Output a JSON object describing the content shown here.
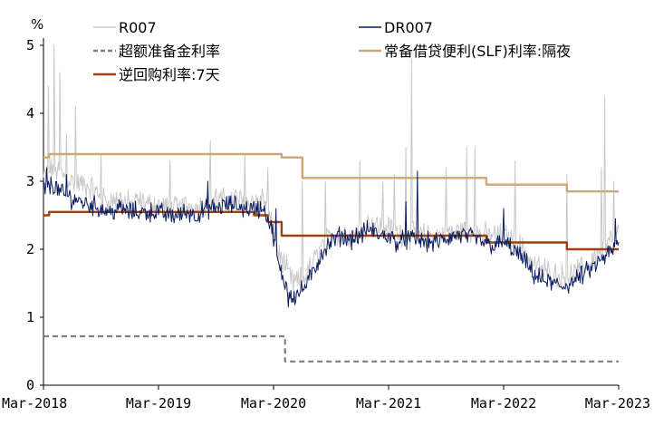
{
  "chart_data": {
    "type": "line",
    "unit_label": "%",
    "ylim": [
      0,
      5
    ],
    "yticks": [
      0,
      1,
      2,
      3,
      4,
      5
    ],
    "x_range": [
      "2018-03",
      "2023-03"
    ],
    "x_ticks": [
      {
        "label": "Mar-2018",
        "t": 2018.0
      },
      {
        "label": "Mar-2019",
        "t": 2019.0
      },
      {
        "label": "Mar-2020",
        "t": 2020.0
      },
      {
        "label": "Mar-2021",
        "t": 2021.0
      },
      {
        "label": "Mar-2022",
        "t": 2022.0
      },
      {
        "label": "Mar-2023",
        "t": 2023.0
      }
    ],
    "series": [
      {
        "name": "R007",
        "color": "#c8c8c8",
        "style": "solid",
        "kind": "noisy",
        "points": [
          [
            2018.0,
            3.05
          ],
          [
            2018.08,
            3.2
          ],
          [
            2018.17,
            3.1
          ],
          [
            2018.25,
            3.0
          ],
          [
            2018.33,
            2.95
          ],
          [
            2018.42,
            2.9
          ],
          [
            2018.5,
            2.75
          ],
          [
            2018.58,
            2.7
          ],
          [
            2018.67,
            2.75
          ],
          [
            2018.75,
            2.65
          ],
          [
            2018.83,
            2.7
          ],
          [
            2018.92,
            2.65
          ],
          [
            2019.0,
            2.65
          ],
          [
            2019.08,
            2.6
          ],
          [
            2019.17,
            2.6
          ],
          [
            2019.25,
            2.65
          ],
          [
            2019.33,
            2.6
          ],
          [
            2019.42,
            2.7
          ],
          [
            2019.5,
            2.75
          ],
          [
            2019.58,
            2.7
          ],
          [
            2019.67,
            2.75
          ],
          [
            2019.75,
            2.7
          ],
          [
            2019.83,
            2.7
          ],
          [
            2019.92,
            2.75
          ],
          [
            2020.0,
            2.2
          ],
          [
            2020.05,
            1.9
          ],
          [
            2020.1,
            1.75
          ],
          [
            2020.17,
            1.5
          ],
          [
            2020.25,
            1.55
          ],
          [
            2020.33,
            1.75
          ],
          [
            2020.42,
            2.05
          ],
          [
            2020.5,
            2.2
          ],
          [
            2020.58,
            2.25
          ],
          [
            2020.67,
            2.2
          ],
          [
            2020.75,
            2.3
          ],
          [
            2020.83,
            2.4
          ],
          [
            2020.92,
            2.35
          ],
          [
            2021.0,
            2.3
          ],
          [
            2021.08,
            2.25
          ],
          [
            2021.17,
            2.2
          ],
          [
            2021.25,
            2.2
          ],
          [
            2021.33,
            2.2
          ],
          [
            2021.42,
            2.2
          ],
          [
            2021.5,
            2.25
          ],
          [
            2021.58,
            2.25
          ],
          [
            2021.67,
            2.3
          ],
          [
            2021.75,
            2.25
          ],
          [
            2021.83,
            2.2
          ],
          [
            2021.92,
            2.2
          ],
          [
            2022.0,
            2.2
          ],
          [
            2022.08,
            2.15
          ],
          [
            2022.17,
            2.0
          ],
          [
            2022.25,
            1.8
          ],
          [
            2022.33,
            1.7
          ],
          [
            2022.42,
            1.65
          ],
          [
            2022.5,
            1.6
          ],
          [
            2022.58,
            1.6
          ],
          [
            2022.67,
            1.7
          ],
          [
            2022.75,
            1.8
          ],
          [
            2022.83,
            1.95
          ],
          [
            2022.92,
            2.1
          ],
          [
            2023.0,
            2.25
          ]
        ],
        "spikes": [
          [
            2018.04,
            4.4
          ],
          [
            2018.09,
            5.0
          ],
          [
            2018.14,
            4.6
          ],
          [
            2018.2,
            3.7
          ],
          [
            2018.28,
            4.1
          ],
          [
            2018.5,
            3.4
          ],
          [
            2019.1,
            3.3
          ],
          [
            2019.45,
            3.6
          ],
          [
            2019.75,
            3.4
          ],
          [
            2019.95,
            3.2
          ],
          [
            2020.25,
            3.0
          ],
          [
            2020.45,
            3.0
          ],
          [
            2020.75,
            3.3
          ],
          [
            2020.95,
            3.0
          ],
          [
            2021.05,
            3.1
          ],
          [
            2021.15,
            3.5
          ],
          [
            2021.2,
            4.8
          ],
          [
            2021.5,
            3.2
          ],
          [
            2021.68,
            3.5
          ],
          [
            2021.75,
            3.5
          ],
          [
            2022.1,
            3.3
          ],
          [
            2022.55,
            3.1
          ],
          [
            2022.85,
            3.2
          ],
          [
            2022.88,
            4.25
          ],
          [
            2022.96,
            3.0
          ]
        ]
      },
      {
        "name": "DR007",
        "color": "#0b1d5c",
        "style": "solid",
        "kind": "noisy",
        "points": [
          [
            2018.0,
            2.9
          ],
          [
            2018.08,
            2.95
          ],
          [
            2018.17,
            2.8
          ],
          [
            2018.25,
            2.75
          ],
          [
            2018.33,
            2.7
          ],
          [
            2018.42,
            2.65
          ],
          [
            2018.5,
            2.6
          ],
          [
            2018.58,
            2.55
          ],
          [
            2018.67,
            2.6
          ],
          [
            2018.75,
            2.55
          ],
          [
            2018.83,
            2.55
          ],
          [
            2018.92,
            2.55
          ],
          [
            2019.0,
            2.55
          ],
          [
            2019.08,
            2.5
          ],
          [
            2019.17,
            2.5
          ],
          [
            2019.25,
            2.55
          ],
          [
            2019.33,
            2.5
          ],
          [
            2019.42,
            2.6
          ],
          [
            2019.5,
            2.6
          ],
          [
            2019.58,
            2.65
          ],
          [
            2019.67,
            2.65
          ],
          [
            2019.75,
            2.6
          ],
          [
            2019.83,
            2.6
          ],
          [
            2019.92,
            2.6
          ],
          [
            2020.0,
            2.2
          ],
          [
            2020.05,
            1.7
          ],
          [
            2020.1,
            1.5
          ],
          [
            2020.17,
            1.3
          ],
          [
            2020.25,
            1.4
          ],
          [
            2020.33,
            1.6
          ],
          [
            2020.42,
            1.95
          ],
          [
            2020.5,
            2.1
          ],
          [
            2020.58,
            2.2
          ],
          [
            2020.67,
            2.15
          ],
          [
            2020.75,
            2.2
          ],
          [
            2020.83,
            2.3
          ],
          [
            2020.92,
            2.2
          ],
          [
            2021.0,
            2.2
          ],
          [
            2021.08,
            2.1
          ],
          [
            2021.17,
            2.15
          ],
          [
            2021.25,
            2.15
          ],
          [
            2021.33,
            2.1
          ],
          [
            2021.42,
            2.1
          ],
          [
            2021.5,
            2.15
          ],
          [
            2021.58,
            2.2
          ],
          [
            2021.67,
            2.2
          ],
          [
            2021.75,
            2.15
          ],
          [
            2021.83,
            2.1
          ],
          [
            2021.92,
            2.05
          ],
          [
            2022.0,
            2.1
          ],
          [
            2022.08,
            2.0
          ],
          [
            2022.17,
            1.85
          ],
          [
            2022.25,
            1.65
          ],
          [
            2022.33,
            1.55
          ],
          [
            2022.42,
            1.5
          ],
          [
            2022.5,
            1.45
          ],
          [
            2022.58,
            1.5
          ],
          [
            2022.67,
            1.6
          ],
          [
            2022.75,
            1.7
          ],
          [
            2022.83,
            1.8
          ],
          [
            2022.92,
            1.95
          ],
          [
            2023.0,
            2.05
          ]
        ],
        "spikes": [
          [
            2018.03,
            3.2
          ],
          [
            2018.2,
            3.1
          ],
          [
            2019.43,
            3.0
          ],
          [
            2020.02,
            2.6
          ],
          [
            2020.13,
            1.15
          ],
          [
            2021.15,
            2.7
          ],
          [
            2021.25,
            3.15
          ],
          [
            2022.0,
            2.6
          ],
          [
            2022.97,
            2.45
          ]
        ]
      },
      {
        "name": "超额准备金利率",
        "color": "#7f7f7f",
        "style": "dashed",
        "kind": "step",
        "points": [
          [
            2018.0,
            0.72
          ],
          [
            2020.1,
            0.72
          ],
          [
            2020.1,
            0.35
          ],
          [
            2023.0,
            0.35
          ]
        ]
      },
      {
        "name": "常备借贷便利(SLF)利率:隔夜",
        "color": "#c9a97a",
        "style": "solid",
        "kind": "step",
        "points": [
          [
            2018.0,
            3.35
          ],
          [
            2018.05,
            3.35
          ],
          [
            2018.05,
            3.4
          ],
          [
            2020.07,
            3.4
          ],
          [
            2020.07,
            3.35
          ],
          [
            2020.25,
            3.35
          ],
          [
            2020.25,
            3.05
          ],
          [
            2021.85,
            3.05
          ],
          [
            2021.85,
            2.95
          ],
          [
            2022.55,
            2.95
          ],
          [
            2022.55,
            2.85
          ],
          [
            2023.0,
            2.85
          ]
        ]
      },
      {
        "name": "逆回购利率:7天",
        "color": "#a0400c",
        "style": "solid",
        "kind": "step",
        "points": [
          [
            2018.0,
            2.5
          ],
          [
            2018.05,
            2.5
          ],
          [
            2018.05,
            2.55
          ],
          [
            2019.83,
            2.55
          ],
          [
            2019.83,
            2.5
          ],
          [
            2019.95,
            2.5
          ],
          [
            2019.95,
            2.4
          ],
          [
            2020.07,
            2.4
          ],
          [
            2020.07,
            2.2
          ],
          [
            2021.85,
            2.2
          ],
          [
            2021.85,
            2.1
          ],
          [
            2022.55,
            2.1
          ],
          [
            2022.55,
            2.0
          ],
          [
            2023.0,
            2.0
          ]
        ]
      }
    ],
    "legend": [
      {
        "label": "R007",
        "series": 0
      },
      {
        "label": "DR007",
        "series": 1
      },
      {
        "label": "超额准备金利率",
        "series": 2
      },
      {
        "label": "常备借贷便利(SLF)利率:隔夜",
        "series": 3
      },
      {
        "label": "逆回购利率:7天",
        "series": 4
      }
    ]
  }
}
